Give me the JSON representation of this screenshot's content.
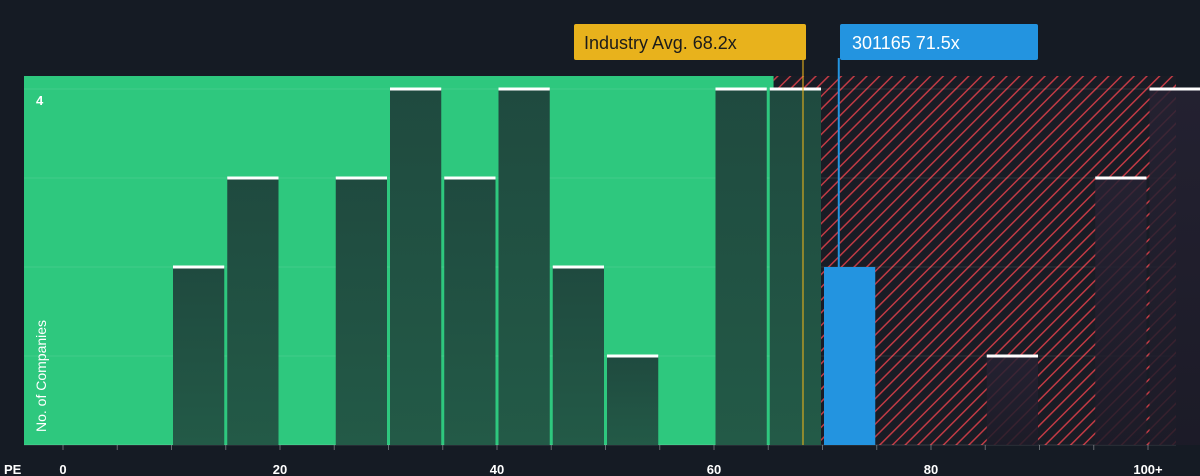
{
  "chart_data": {
    "type": "bar",
    "xaxis_title": "PE",
    "ylabel": "No. of Companies",
    "x_ticks": [
      {
        "value": 0,
        "label": "0"
      },
      {
        "value": 20,
        "label": "20"
      },
      {
        "value": 40,
        "label": "40"
      },
      {
        "value": 60,
        "label": "60"
      },
      {
        "value": 80,
        "label": "80"
      },
      {
        "value": 100,
        "label": "100+"
      }
    ],
    "y_tick_label": "4",
    "ylim": [
      0,
      4
    ],
    "bins": [
      {
        "from": 10,
        "to": 15,
        "count": 2
      },
      {
        "from": 15,
        "to": 20,
        "count": 3
      },
      {
        "from": 25,
        "to": 30,
        "count": 3
      },
      {
        "from": 30,
        "to": 35,
        "count": 4
      },
      {
        "from": 35,
        "to": 40,
        "count": 3
      },
      {
        "from": 40,
        "to": 45,
        "count": 4
      },
      {
        "from": 45,
        "to": 50,
        "count": 2
      },
      {
        "from": 50,
        "to": 55,
        "count": 1
      },
      {
        "from": 60,
        "to": 65,
        "count": 4
      },
      {
        "from": 65,
        "to": 70,
        "count": 4
      },
      {
        "from": 70,
        "to": 75,
        "count": 2,
        "highlight": true
      },
      {
        "from": 85,
        "to": 90,
        "count": 1
      },
      {
        "from": 95,
        "to": 100,
        "count": 3
      },
      {
        "from": 100,
        "to": 105,
        "count": 4
      }
    ],
    "fair_zone_end": 65.5,
    "industry_avg": {
      "label": "Industry Avg. 68.2x",
      "value": 68.2
    },
    "company": {
      "label": "301165 71.5x",
      "value": 71.5
    },
    "colors": {
      "background": "#151b24",
      "fair": "#2ec87e",
      "overvalued": "#b33a42",
      "bar": "#1e4a3e",
      "company": "#2394e0",
      "industry": "#e8b21c",
      "cap": "#ffffff"
    }
  }
}
